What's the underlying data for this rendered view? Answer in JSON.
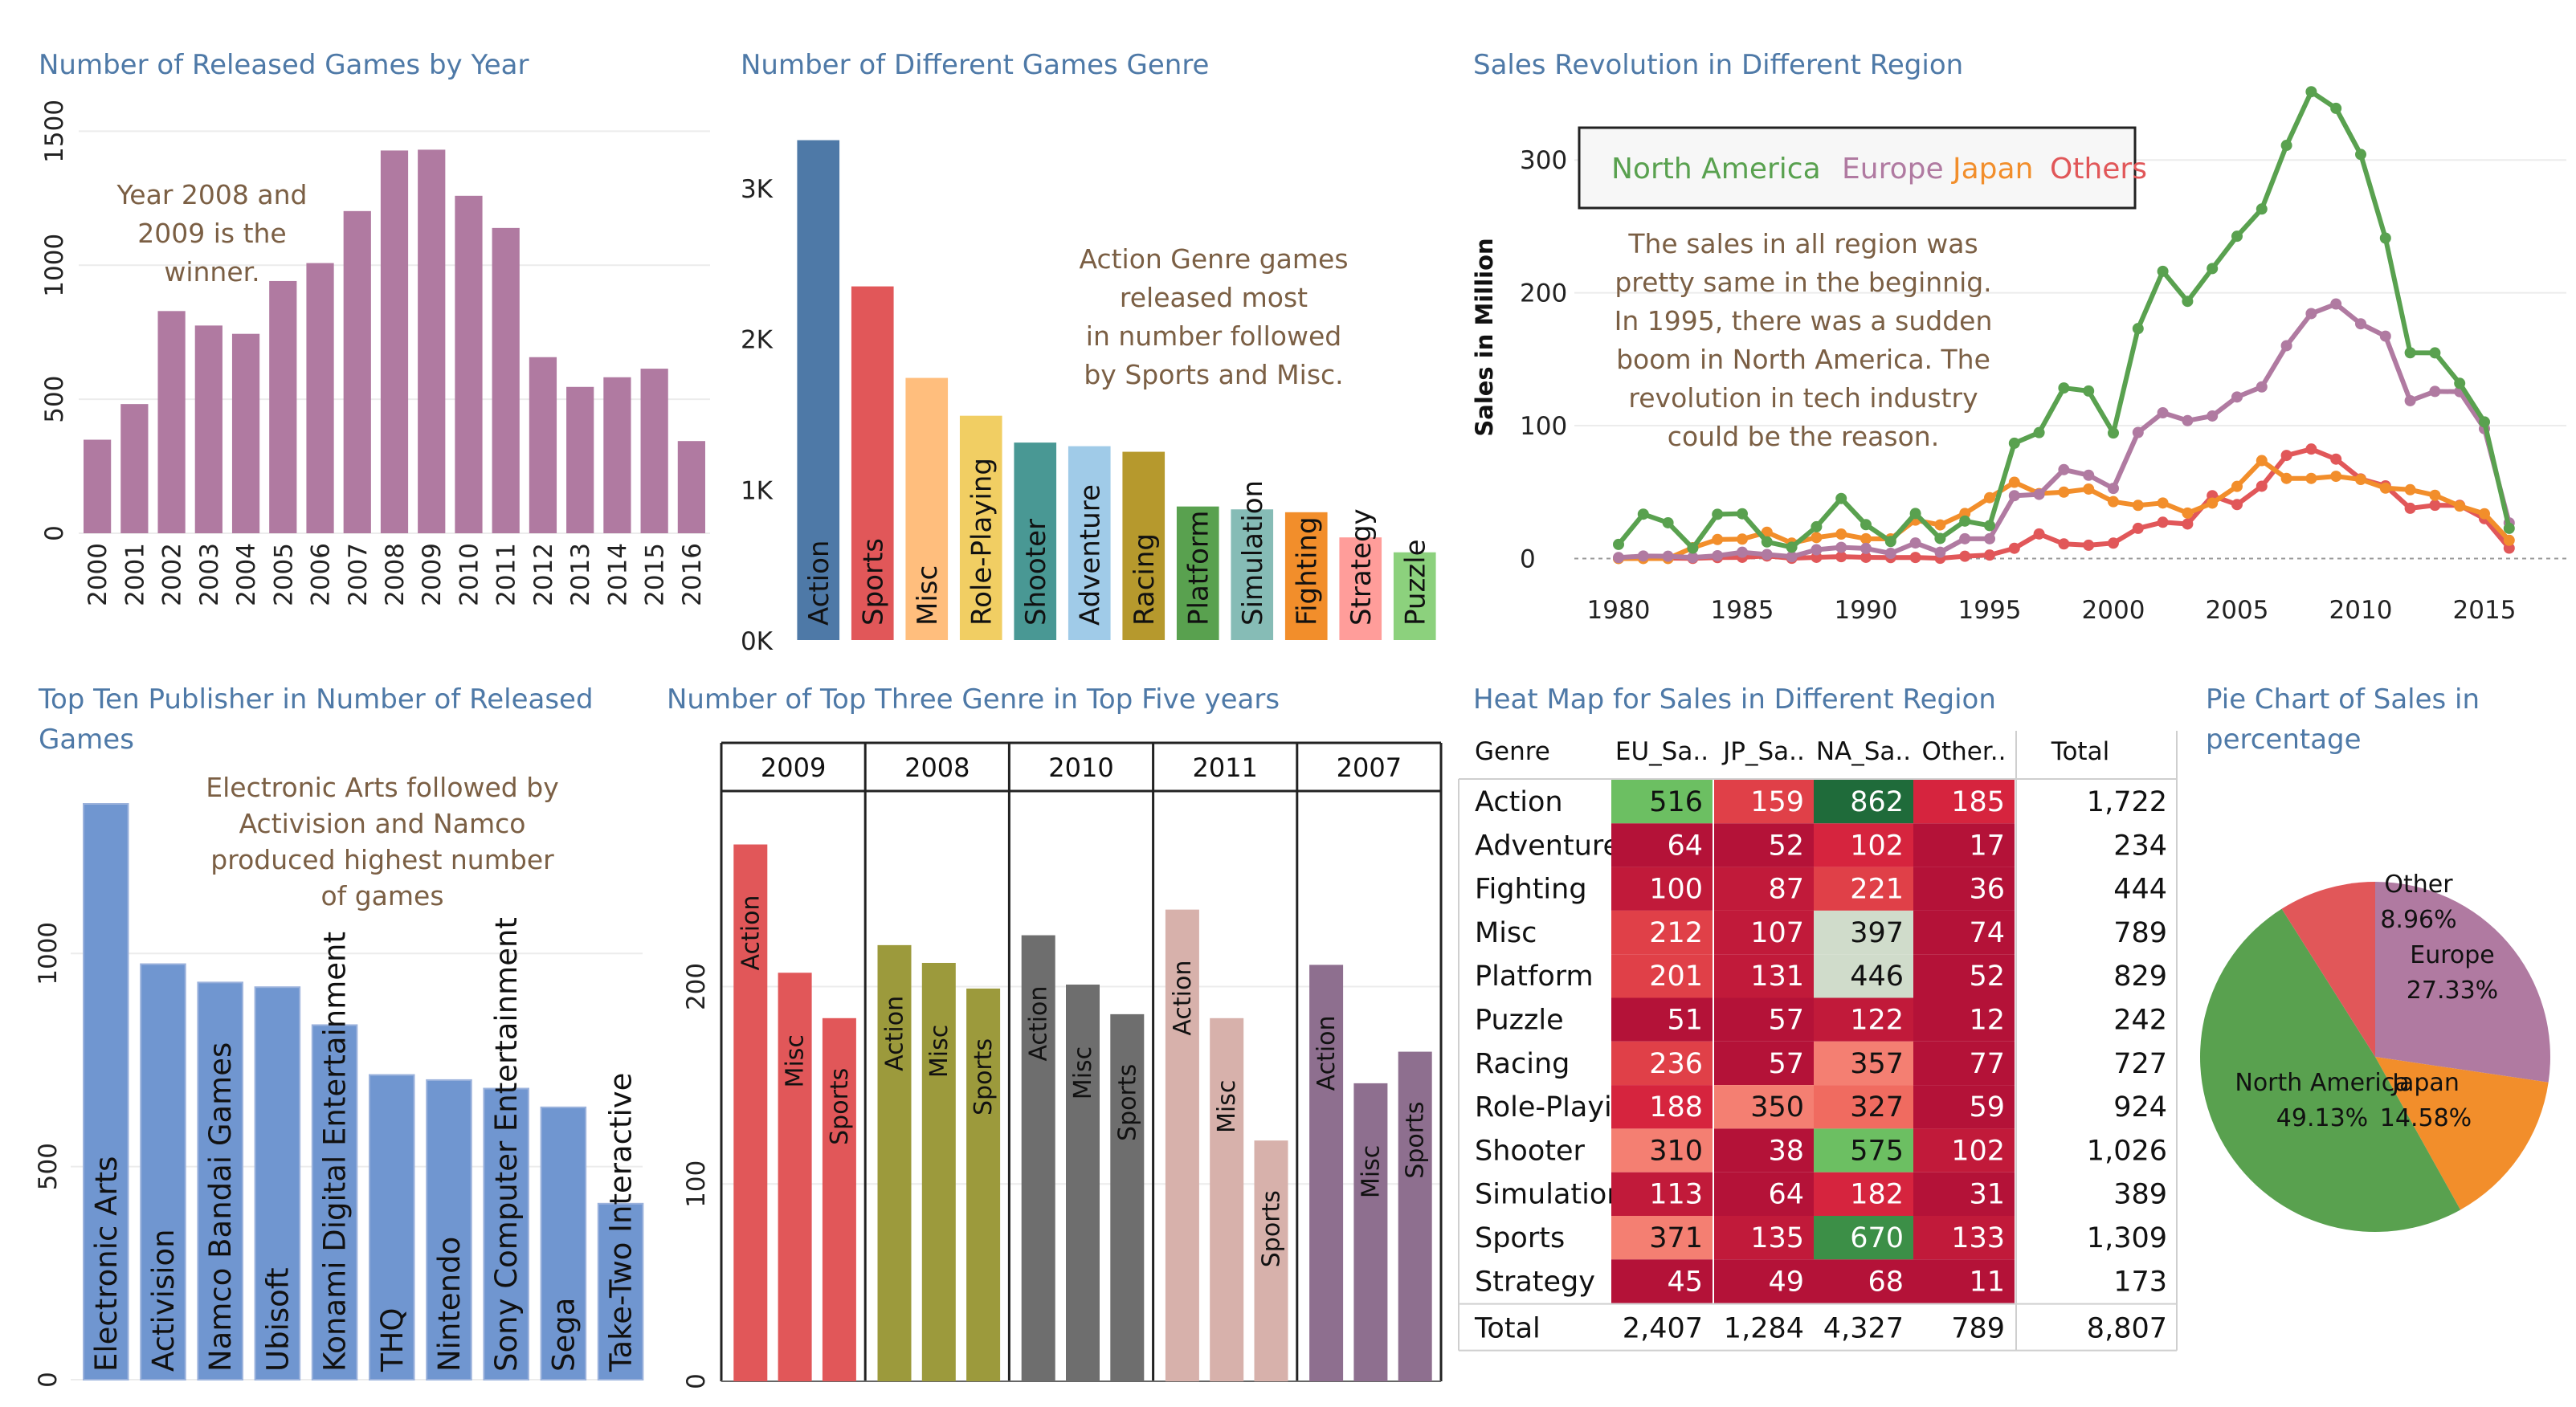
{
  "colors": {
    "title": "#4e79a7",
    "purple": "#b07aa1",
    "na": "#59a14f",
    "eu": "#b07aa1",
    "jp": "#f28e2b",
    "other": "#e15759",
    "annotation": "#7b5f44"
  },
  "panels": {
    "year": {
      "title": "Number of Released Games by Year",
      "annotation": [
        "Year 2008 and",
        "2009 is the",
        "winner."
      ]
    },
    "genre": {
      "title": "Number of Different Games Genre",
      "annotation": [
        "Action Genre games",
        "released most",
        "in number followed",
        "by Sports and Misc."
      ]
    },
    "region": {
      "title": "Sales Revolution in Different Region",
      "legend": [
        "North America",
        "Europe",
        "Japan",
        "Others"
      ],
      "annotation": [
        "The sales in all region was",
        "pretty same in the beginnig.",
        "In 1995, there was a sudden",
        "boom in North America. The",
        "revolution in tech industry",
        "could be the reason."
      ]
    },
    "publisher": {
      "title": [
        "Top Ten Publisher in Number of Released",
        "Games"
      ],
      "annotation": [
        "Electronic Arts followed by",
        "Activision and Namco",
        "produced highest number",
        "of games"
      ]
    },
    "topgenre": {
      "title": "Number of Top Three Genre in Top Five years"
    },
    "heatmap": {
      "title": "Heat Map for Sales in Different Region"
    },
    "pie": {
      "title": [
        "Pie Chart of Sales in",
        "percentage"
      ]
    }
  },
  "chart_data": [
    {
      "type": "bar",
      "title": "Number of Released Games by Year",
      "categories": [
        "2000",
        "2001",
        "2002",
        "2003",
        "2004",
        "2005",
        "2006",
        "2007",
        "2008",
        "2009",
        "2010",
        "2011",
        "2012",
        "2013",
        "2014",
        "2015",
        "2016"
      ],
      "values": [
        349,
        482,
        829,
        775,
        744,
        941,
        1008,
        1202,
        1428,
        1431,
        1259,
        1139,
        657,
        546,
        582,
        614,
        344
      ],
      "yticks": [
        0,
        500,
        1000,
        1500
      ],
      "ylim": [
        0,
        1600
      ],
      "color": "#b07aa1"
    },
    {
      "type": "bar",
      "title": "Number of Different Games Genre",
      "categories": [
        "Action",
        "Sports",
        "Misc",
        "Role-Playing",
        "Shooter",
        "Adventure",
        "Racing",
        "Platform",
        "Simulation",
        "Fighting",
        "Strategy",
        "Puzzle"
      ],
      "values": [
        3316,
        2346,
        1739,
        1488,
        1310,
        1286,
        1249,
        886,
        867,
        848,
        681,
        582
      ],
      "colors": [
        "#4e79a7",
        "#e15759",
        "#ffbe7d",
        "#f1ce63",
        "#499894",
        "#a0cbe8",
        "#b6992d",
        "#59a14f",
        "#86bcb6",
        "#f28e2b",
        "#ff9d9a",
        "#8cd17d"
      ],
      "yticks": [
        0,
        1000,
        2000,
        3000
      ],
      "yticklabels": [
        "0K",
        "1K",
        "2K",
        "3K"
      ],
      "ylim": [
        0,
        3500
      ]
    },
    {
      "type": "line",
      "title": "Sales Revolution in Different Region",
      "ylabel": "Sales in Million",
      "x": [
        1980,
        1981,
        1982,
        1983,
        1984,
        1985,
        1986,
        1987,
        1988,
        1989,
        1990,
        1991,
        1992,
        1993,
        1994,
        1995,
        1996,
        1997,
        1998,
        1999,
        2000,
        2001,
        2002,
        2003,
        2004,
        2005,
        2006,
        2007,
        2008,
        2009,
        2010,
        2011,
        2012,
        2013,
        2014,
        2015,
        2016
      ],
      "xticks": [
        1980,
        1985,
        1990,
        1995,
        2000,
        2005,
        2010,
        2015
      ],
      "yticks": [
        0,
        100,
        200,
        300
      ],
      "ylim": [
        -10,
        360
      ],
      "series": [
        {
          "name": "North America",
          "color": "#59a14f",
          "values": [
            10.6,
            33.4,
            26.9,
            7.8,
            33.3,
            33.7,
            12.5,
            8.5,
            23.9,
            45.2,
            25.5,
            12.8,
            33.9,
            15.1,
            28.2,
            24.8,
            86.8,
            94.8,
            128.4,
            126.1,
            94.5,
            173.1,
            216.2,
            193.6,
            218.3,
            242.6,
            263.1,
            311.0,
            351.4,
            338.9,
            304.2,
            241.2,
            154.9,
            154.8,
            131.9,
            102.8,
            22.7
          ]
        },
        {
          "name": "Europe",
          "color": "#b07aa1",
          "values": [
            0.7,
            1.9,
            1.7,
            0.8,
            2.1,
            4.7,
            3.0,
            1.4,
            6.6,
            8.4,
            7.6,
            3.9,
            11.7,
            4.7,
            14.9,
            14.9,
            47.3,
            48.3,
            66.9,
            62.7,
            52.8,
            94.9,
            109.7,
            103.8,
            107.3,
            121.6,
            129.2,
            160.2,
            184.4,
            191.6,
            176.7,
            167.4,
            118.8,
            125.8,
            125.6,
            97.7,
            26.8
          ]
        },
        {
          "name": "Japan",
          "color": "#f28e2b",
          "values": [
            0.0,
            0.0,
            0.0,
            8.1,
            14.3,
            14.6,
            19.8,
            11.6,
            15.8,
            18.4,
            14.9,
            14.8,
            28.9,
            25.3,
            33.9,
            45.8,
            57.4,
            48.9,
            50.0,
            52.3,
            42.8,
            40.0,
            41.8,
            34.2,
            41.7,
            54.3,
            73.7,
            60.3,
            60.3,
            61.9,
            59.5,
            53.0,
            51.8,
            47.6,
            39.5,
            33.7,
            13.7
          ]
        },
        {
          "name": "Others",
          "color": "#e15759",
          "values": [
            0.1,
            0.3,
            0.3,
            0.1,
            0.7,
            0.9,
            1.9,
            0.2,
            0.9,
            1.4,
            0.9,
            0.7,
            0.8,
            0.2,
            1.7,
            2.6,
            7.7,
            18.5,
            11.0,
            10.0,
            11.6,
            22.7,
            27.3,
            26.0,
            47.3,
            40.6,
            54.4,
            77.6,
            82.4,
            74.8,
            59.9,
            54.7,
            37.8,
            40.1,
            40.0,
            30.0,
            7.8
          ]
        }
      ]
    },
    {
      "type": "bar",
      "title": "Top Ten Publisher in Number of Released Games",
      "categories": [
        "Electronic Arts",
        "Activision",
        "Namco Bandai Games",
        "Ubisoft",
        "Konami Digital Entertainment",
        "THQ",
        "Nintendo",
        "Sony Computer Entertainment",
        "Sega",
        "Take-Two Interactive"
      ],
      "values": [
        1351,
        975,
        932,
        921,
        832,
        715,
        703,
        683,
        639,
        413
      ],
      "yticks": [
        0,
        500,
        1000
      ],
      "ylim": [
        0,
        1400
      ],
      "color": "#7096d0"
    },
    {
      "type": "bar",
      "title": "Number of Top Three Genre in Top Five years",
      "groups": [
        {
          "year": "2009",
          "color": "#e15759",
          "genres": [
            "Action",
            "Misc",
            "Sports"
          ],
          "values": [
            272,
            207,
            184
          ]
        },
        {
          "year": "2008",
          "color": "#9c9a3c",
          "genres": [
            "Action",
            "Misc",
            "Sports"
          ],
          "values": [
            221,
            212,
            199
          ]
        },
        {
          "year": "2010",
          "color": "#6e6e6e",
          "genres": [
            "Action",
            "Misc",
            "Sports"
          ],
          "values": [
            226,
            201,
            186
          ]
        },
        {
          "year": "2011",
          "color": "#d7b1ab",
          "genres": [
            "Action",
            "Misc",
            "Sports"
          ],
          "values": [
            239,
            184,
            122
          ]
        },
        {
          "year": "2007",
          "color": "#8e6f8f",
          "genres": [
            "Action",
            "Misc",
            "Sports"
          ],
          "values": [
            211,
            151,
            167
          ]
        }
      ],
      "yticks": [
        0,
        100,
        200
      ],
      "ylim": [
        0,
        295
      ]
    },
    {
      "type": "heatmap",
      "title": "Heat Map for Sales in Different Region",
      "columns": [
        "Genre",
        "EU_Sa..",
        "JP_Sa..",
        "NA_Sa..",
        "Other..",
        "Total"
      ],
      "rows": [
        {
          "genre": "Action",
          "values": [
            "516",
            "159",
            "862",
            "185"
          ],
          "colors": [
            "#6cbf62",
            "#e04048",
            "#1f6b3a",
            "#d6243e"
          ],
          "total": "1,722"
        },
        {
          "genre": "Adventure",
          "values": [
            "64",
            "52",
            "102",
            "17"
          ],
          "colors": [
            "#b41238",
            "#b41238",
            "#d6243e",
            "#b41238"
          ],
          "total": "234"
        },
        {
          "genre": "Fighting",
          "values": [
            "100",
            "87",
            "221",
            "36"
          ],
          "colors": [
            "#c11a3a",
            "#c11a3a",
            "#e04048",
            "#b41238"
          ],
          "total": "444"
        },
        {
          "genre": "Misc",
          "values": [
            "212",
            "107",
            "397",
            "74"
          ],
          "colors": [
            "#e04048",
            "#c11a3a",
            "#d0dccb",
            "#b41238"
          ],
          "total": "789"
        },
        {
          "genre": "Platform",
          "values": [
            "201",
            "131",
            "446",
            "52"
          ],
          "colors": [
            "#e04048",
            "#c11a3a",
            "#d0dccb",
            "#b41238"
          ],
          "total": "829"
        },
        {
          "genre": "Puzzle",
          "values": [
            "51",
            "57",
            "122",
            "12"
          ],
          "colors": [
            "#b41238",
            "#b41238",
            "#c11a3a",
            "#b41238"
          ],
          "total": "242"
        },
        {
          "genre": "Racing",
          "values": [
            "236",
            "57",
            "357",
            "77"
          ],
          "colors": [
            "#e04048",
            "#b41238",
            "#f47f72",
            "#b41238"
          ],
          "total": "727"
        },
        {
          "genre": "Role-Playing",
          "values": [
            "188",
            "350",
            "327",
            "59"
          ],
          "colors": [
            "#d6243e",
            "#f47f72",
            "#f06b60",
            "#b41238"
          ],
          "total": "924"
        },
        {
          "genre": "Shooter",
          "values": [
            "310",
            "38",
            "575",
            "102"
          ],
          "colors": [
            "#f47f72",
            "#b41238",
            "#6cbf62",
            "#c11a3a"
          ],
          "total": "1,026"
        },
        {
          "genre": "Simulation",
          "values": [
            "113",
            "64",
            "182",
            "31"
          ],
          "colors": [
            "#c11a3a",
            "#b41238",
            "#d6243e",
            "#b41238"
          ],
          "total": "389"
        },
        {
          "genre": "Sports",
          "values": [
            "371",
            "135",
            "670",
            "133"
          ],
          "colors": [
            "#f47f72",
            "#c11a3a",
            "#3c8f47",
            "#c11a3a"
          ],
          "total": "1,309"
        },
        {
          "genre": "Strategy",
          "values": [
            "45",
            "49",
            "68",
            "11"
          ],
          "colors": [
            "#b41238",
            "#b41238",
            "#b41238",
            "#b41238"
          ],
          "total": "173"
        }
      ],
      "totals": {
        "label": "Total",
        "values": [
          "2,407",
          "1,284",
          "4,327",
          "789"
        ],
        "total": "8,807"
      }
    },
    {
      "type": "pie",
      "title": "Pie Chart of Sales in percentage",
      "slices": [
        {
          "name": "Europe",
          "value": 27.33,
          "label": "27.33%",
          "color": "#b07aa1"
        },
        {
          "name": "Japan",
          "value": 14.58,
          "label": "14.58%",
          "color": "#f28e2b"
        },
        {
          "name": "North America",
          "value": 49.13,
          "label": "49.13%",
          "color": "#59a14f"
        },
        {
          "name": "Other",
          "value": 8.96,
          "label": "8.96%",
          "color": "#e15759"
        }
      ]
    }
  ]
}
